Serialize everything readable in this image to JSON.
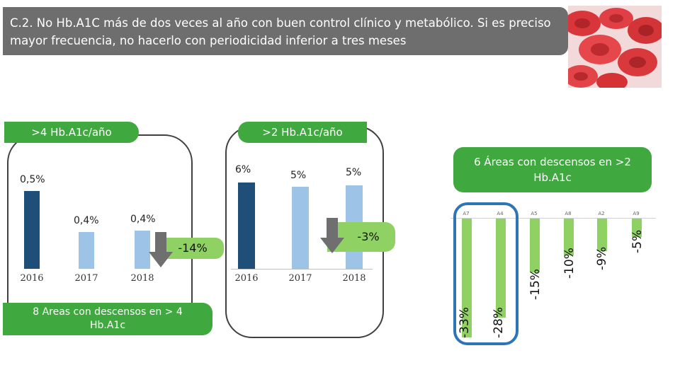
{
  "header": {
    "title": "C.2. No Hb.A1C más de dos veces al año con buen control clínico y metabólico. Si es preciso mayor frecuencia, no hacerlo con periodicidad inferior a tres meses"
  },
  "colors": {
    "title_bg": "#6e6e6e",
    "accent_green": "#3fa83f",
    "light_green": "#8fd163",
    "bar_dark": "#1f4e79",
    "bar_light": "#9dc3e6",
    "highlight_blue": "#2e75b6"
  },
  "chart_data": [
    {
      "type": "bar",
      "title": ">4 Hb.A1c/año",
      "categories": [
        "2016",
        "2017",
        "2018"
      ],
      "values": [
        0.5,
        0.4,
        0.4
      ],
      "value_labels": [
        "0,5%",
        "0,4%",
        "0,4%"
      ],
      "change_label": "-14%",
      "caption": "8 Areas con descensos en > 4 Hb.A1c"
    },
    {
      "type": "bar",
      "title": ">2 Hb.A1c/año",
      "categories": [
        "2016",
        "2017",
        "2018"
      ],
      "values": [
        6,
        5,
        5
      ],
      "value_labels": [
        "6%",
        "5%",
        "5%"
      ],
      "change_label": "-3%"
    },
    {
      "type": "bar",
      "title": "6 Áreas con descensos en >2 Hb.A1c",
      "categories": [
        "A7",
        "A4",
        "A5",
        "A8",
        "A2",
        "A9"
      ],
      "values": [
        -33,
        -28,
        -15,
        -10,
        -9,
        -5
      ],
      "value_labels": [
        "-33%",
        "-28%",
        "-15%",
        "-10%",
        "-9%",
        "-5%"
      ]
    }
  ]
}
